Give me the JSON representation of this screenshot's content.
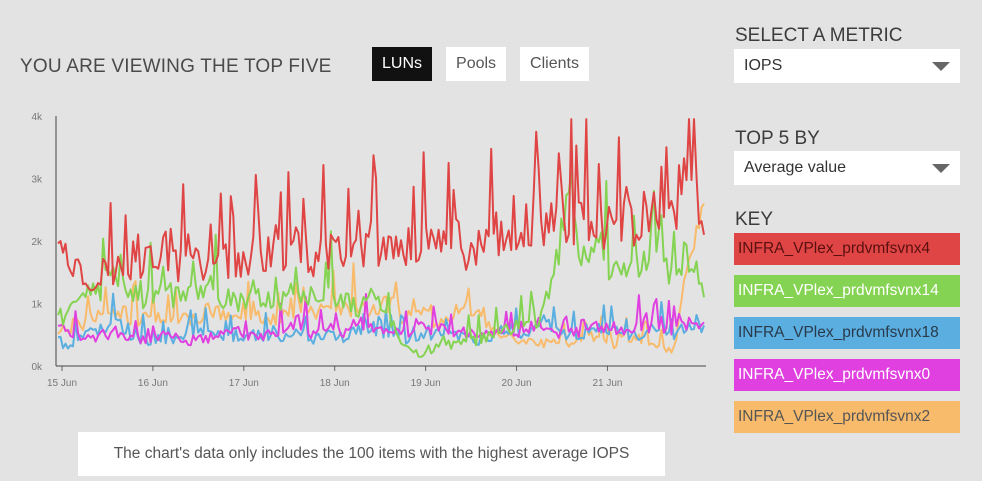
{
  "header": {
    "title": "YOU ARE VIEWING THE TOP FIVE"
  },
  "tabs": [
    {
      "label": "LUNs",
      "active": true
    },
    {
      "label": "Pools",
      "active": false
    },
    {
      "label": "Clients",
      "active": false
    }
  ],
  "metric": {
    "label": "SELECT A METRIC",
    "value": "IOPS"
  },
  "top_by": {
    "label": "TOP 5 BY",
    "value": "Average value"
  },
  "key": {
    "label": "KEY",
    "items": [
      {
        "name": "INFRA_VPlex_prdvmfsvnx4",
        "color": "#e04545",
        "text_color": "#5a1010"
      },
      {
        "name": "INFRA_VPlex_prdvmfsvnx14",
        "color": "#85d352",
        "text_color": "#ffffff"
      },
      {
        "name": "INFRA_VPlex_prdvmfsvnx18",
        "color": "#5aaee0",
        "text_color": "#2a3a4a"
      },
      {
        "name": "INFRA_VPlex_prdvmfsvnx0",
        "color": "#e040e0",
        "text_color": "#ffffff"
      },
      {
        "name": "INFRA_VPlex_prdvmfsvnx2",
        "color": "#f8bb6c",
        "text_color": "#555555"
      }
    ]
  },
  "note": "The chart's data only includes the 100 items with the highest average IOPS",
  "chart_data": {
    "type": "line",
    "x_tick_labels": [
      "15 Jun",
      "16 Jun",
      "17 Jun",
      "18 Jun",
      "19 Jun",
      "20 Jun",
      "21 Jun"
    ],
    "x_range": [
      "15 Jun",
      "22 Jun"
    ],
    "y_tick_labels": [
      "0k",
      "1k",
      "2k",
      "3k",
      "4k"
    ],
    "ylim": [
      0,
      4000
    ],
    "grid": false,
    "series": [
      {
        "name": "INFRA_VPlex_prdvmfsvnx4",
        "color": "#e04545",
        "values": [
          2300,
          1600,
          1450,
          1500,
          1550,
          1650,
          1700,
          1800,
          1600,
          1650,
          1550,
          1700,
          1650,
          1800,
          1650,
          1700,
          2000,
          1650,
          1800,
          1750,
          1800,
          1850,
          2050,
          1750,
          1950,
          1850,
          2000,
          1800,
          1950,
          1900,
          2100,
          2050,
          2200,
          2350,
          2250,
          2300,
          2250,
          2200,
          2250,
          2400,
          2500,
          2350,
          3600,
          2100
        ]
      },
      {
        "name": "INFRA_VPlex_prdvmfsvnx14",
        "color": "#85d352",
        "values": [
          700,
          900,
          1100,
          1300,
          1400,
          1150,
          1050,
          1200,
          1100,
          1150,
          1300,
          1100,
          1000,
          1200,
          1100,
          1050,
          1200,
          1100,
          1250,
          1050,
          950,
          1100,
          800,
          300,
          200,
          300,
          350,
          400,
          400,
          500,
          600,
          650,
          700,
          1500,
          2900,
          1700,
          1900,
          1500,
          1550,
          1750,
          1600,
          1500,
          1800,
          1100
        ]
      },
      {
        "name": "INFRA_VPlex_prdvmfsvnx18",
        "color": "#5aaee0",
        "values": [
          400,
          300,
          500,
          600,
          700,
          450,
          400,
          450,
          400,
          500,
          600,
          450,
          400,
          500,
          450,
          400,
          600,
          400,
          500,
          450,
          600,
          500,
          500,
          400,
          450,
          500,
          500,
          450,
          400,
          500,
          600,
          500,
          700,
          600,
          500,
          500,
          600,
          550,
          500,
          500,
          600,
          500,
          600,
          650
        ]
      },
      {
        "name": "INFRA_VPlex_prdvmfsvnx0",
        "color": "#e040e0",
        "values": [
          600,
          500,
          450,
          500,
          550,
          450,
          400,
          500,
          450,
          400,
          450,
          500,
          550,
          450,
          500,
          600,
          700,
          500,
          650,
          550,
          700,
          650,
          600,
          500,
          700,
          550,
          600,
          500,
          500,
          550,
          500,
          500,
          600,
          500,
          550,
          500,
          650,
          600,
          550,
          650,
          600,
          550,
          700,
          700
        ]
      },
      {
        "name": "INFRA_VPlex_prdvmfsvnx2",
        "color": "#f8bb6c",
        "values": [
          500,
          650,
          700,
          800,
          900,
          750,
          800,
          850,
          700,
          750,
          900,
          800,
          850,
          900,
          750,
          800,
          1000,
          900,
          900,
          850,
          950,
          900,
          1000,
          800,
          900,
          700,
          800,
          1000,
          900,
          600,
          500,
          350,
          400,
          350,
          300,
          400,
          500,
          350,
          450,
          400,
          300,
          300,
          1600,
          2600
        ]
      }
    ]
  }
}
